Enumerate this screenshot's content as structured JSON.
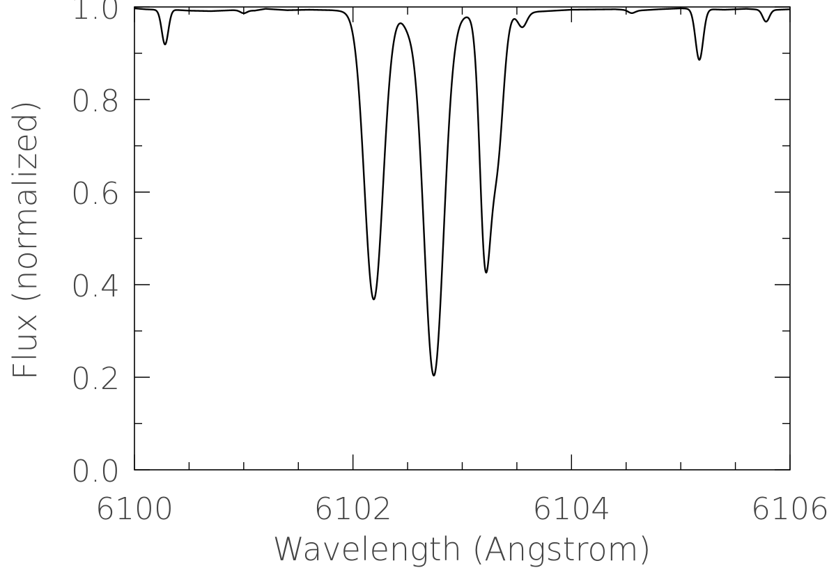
{
  "chart_data": {
    "type": "line",
    "title": "",
    "xlabel": "Wavelength (Angstrom)",
    "ylabel": "Flux (normalized)",
    "xlim": [
      6100,
      6106
    ],
    "ylim": [
      0.0,
      1.0
    ],
    "x_ticks": [
      6100,
      6102,
      6104,
      6106
    ],
    "x_tick_labels": [
      "6100",
      "6102",
      "6104",
      "6106"
    ],
    "y_ticks": [
      0.0,
      0.2,
      0.4,
      0.6,
      0.8,
      1.0
    ],
    "y_tick_labels": [
      "0.0",
      "0.2",
      "0.4",
      "0.6",
      "0.8",
      "1.0"
    ],
    "grid": false,
    "series": [
      {
        "color": "#000000",
        "continuum": [
          [
            6100.0,
            0.997
          ],
          [
            6100.1,
            0.995
          ],
          [
            6100.2,
            0.994
          ],
          [
            6100.35,
            0.994
          ],
          [
            6100.5,
            0.992
          ],
          [
            6100.7,
            0.991
          ],
          [
            6100.9,
            0.993
          ],
          [
            6101.1,
            0.992
          ],
          [
            6101.2,
            0.996
          ],
          [
            6101.4,
            0.993
          ],
          [
            6101.6,
            0.994
          ],
          [
            6101.8,
            0.993
          ],
          [
            6102.0,
            0.99
          ],
          [
            6102.5,
            0.985
          ],
          [
            6103.0,
            0.982
          ],
          [
            6103.5,
            0.985
          ],
          [
            6103.7,
            0.99
          ],
          [
            6104.0,
            0.994
          ],
          [
            6104.4,
            0.995
          ],
          [
            6104.6,
            0.992
          ],
          [
            6104.8,
            0.995
          ],
          [
            6105.0,
            0.997
          ],
          [
            6105.4,
            0.994
          ],
          [
            6105.6,
            0.996
          ],
          [
            6105.8,
            0.993
          ],
          [
            6106.0,
            0.995
          ]
        ],
        "lines": [
          {
            "center": 6100.28,
            "depth": 0.075,
            "width": 0.03
          },
          {
            "center": 6101.0,
            "depth": 0.006,
            "width": 0.03
          },
          {
            "center": 6102.19,
            "depth": 0.62,
            "width": 0.085
          },
          {
            "center": 6102.5,
            "depth": 0.02,
            "width": 0.05
          },
          {
            "center": 6102.74,
            "depth": 0.78,
            "width": 0.09
          },
          {
            "center": 6103.21,
            "depth": 0.51,
            "width": 0.05
          },
          {
            "center": 6103.32,
            "depth": 0.3,
            "width": 0.055
          },
          {
            "center": 6103.55,
            "depth": 0.03,
            "width": 0.04
          },
          {
            "center": 6104.55,
            "depth": 0.006,
            "width": 0.03
          },
          {
            "center": 6105.17,
            "depth": 0.11,
            "width": 0.035
          },
          {
            "center": 6105.78,
            "depth": 0.025,
            "width": 0.03
          }
        ]
      }
    ]
  }
}
